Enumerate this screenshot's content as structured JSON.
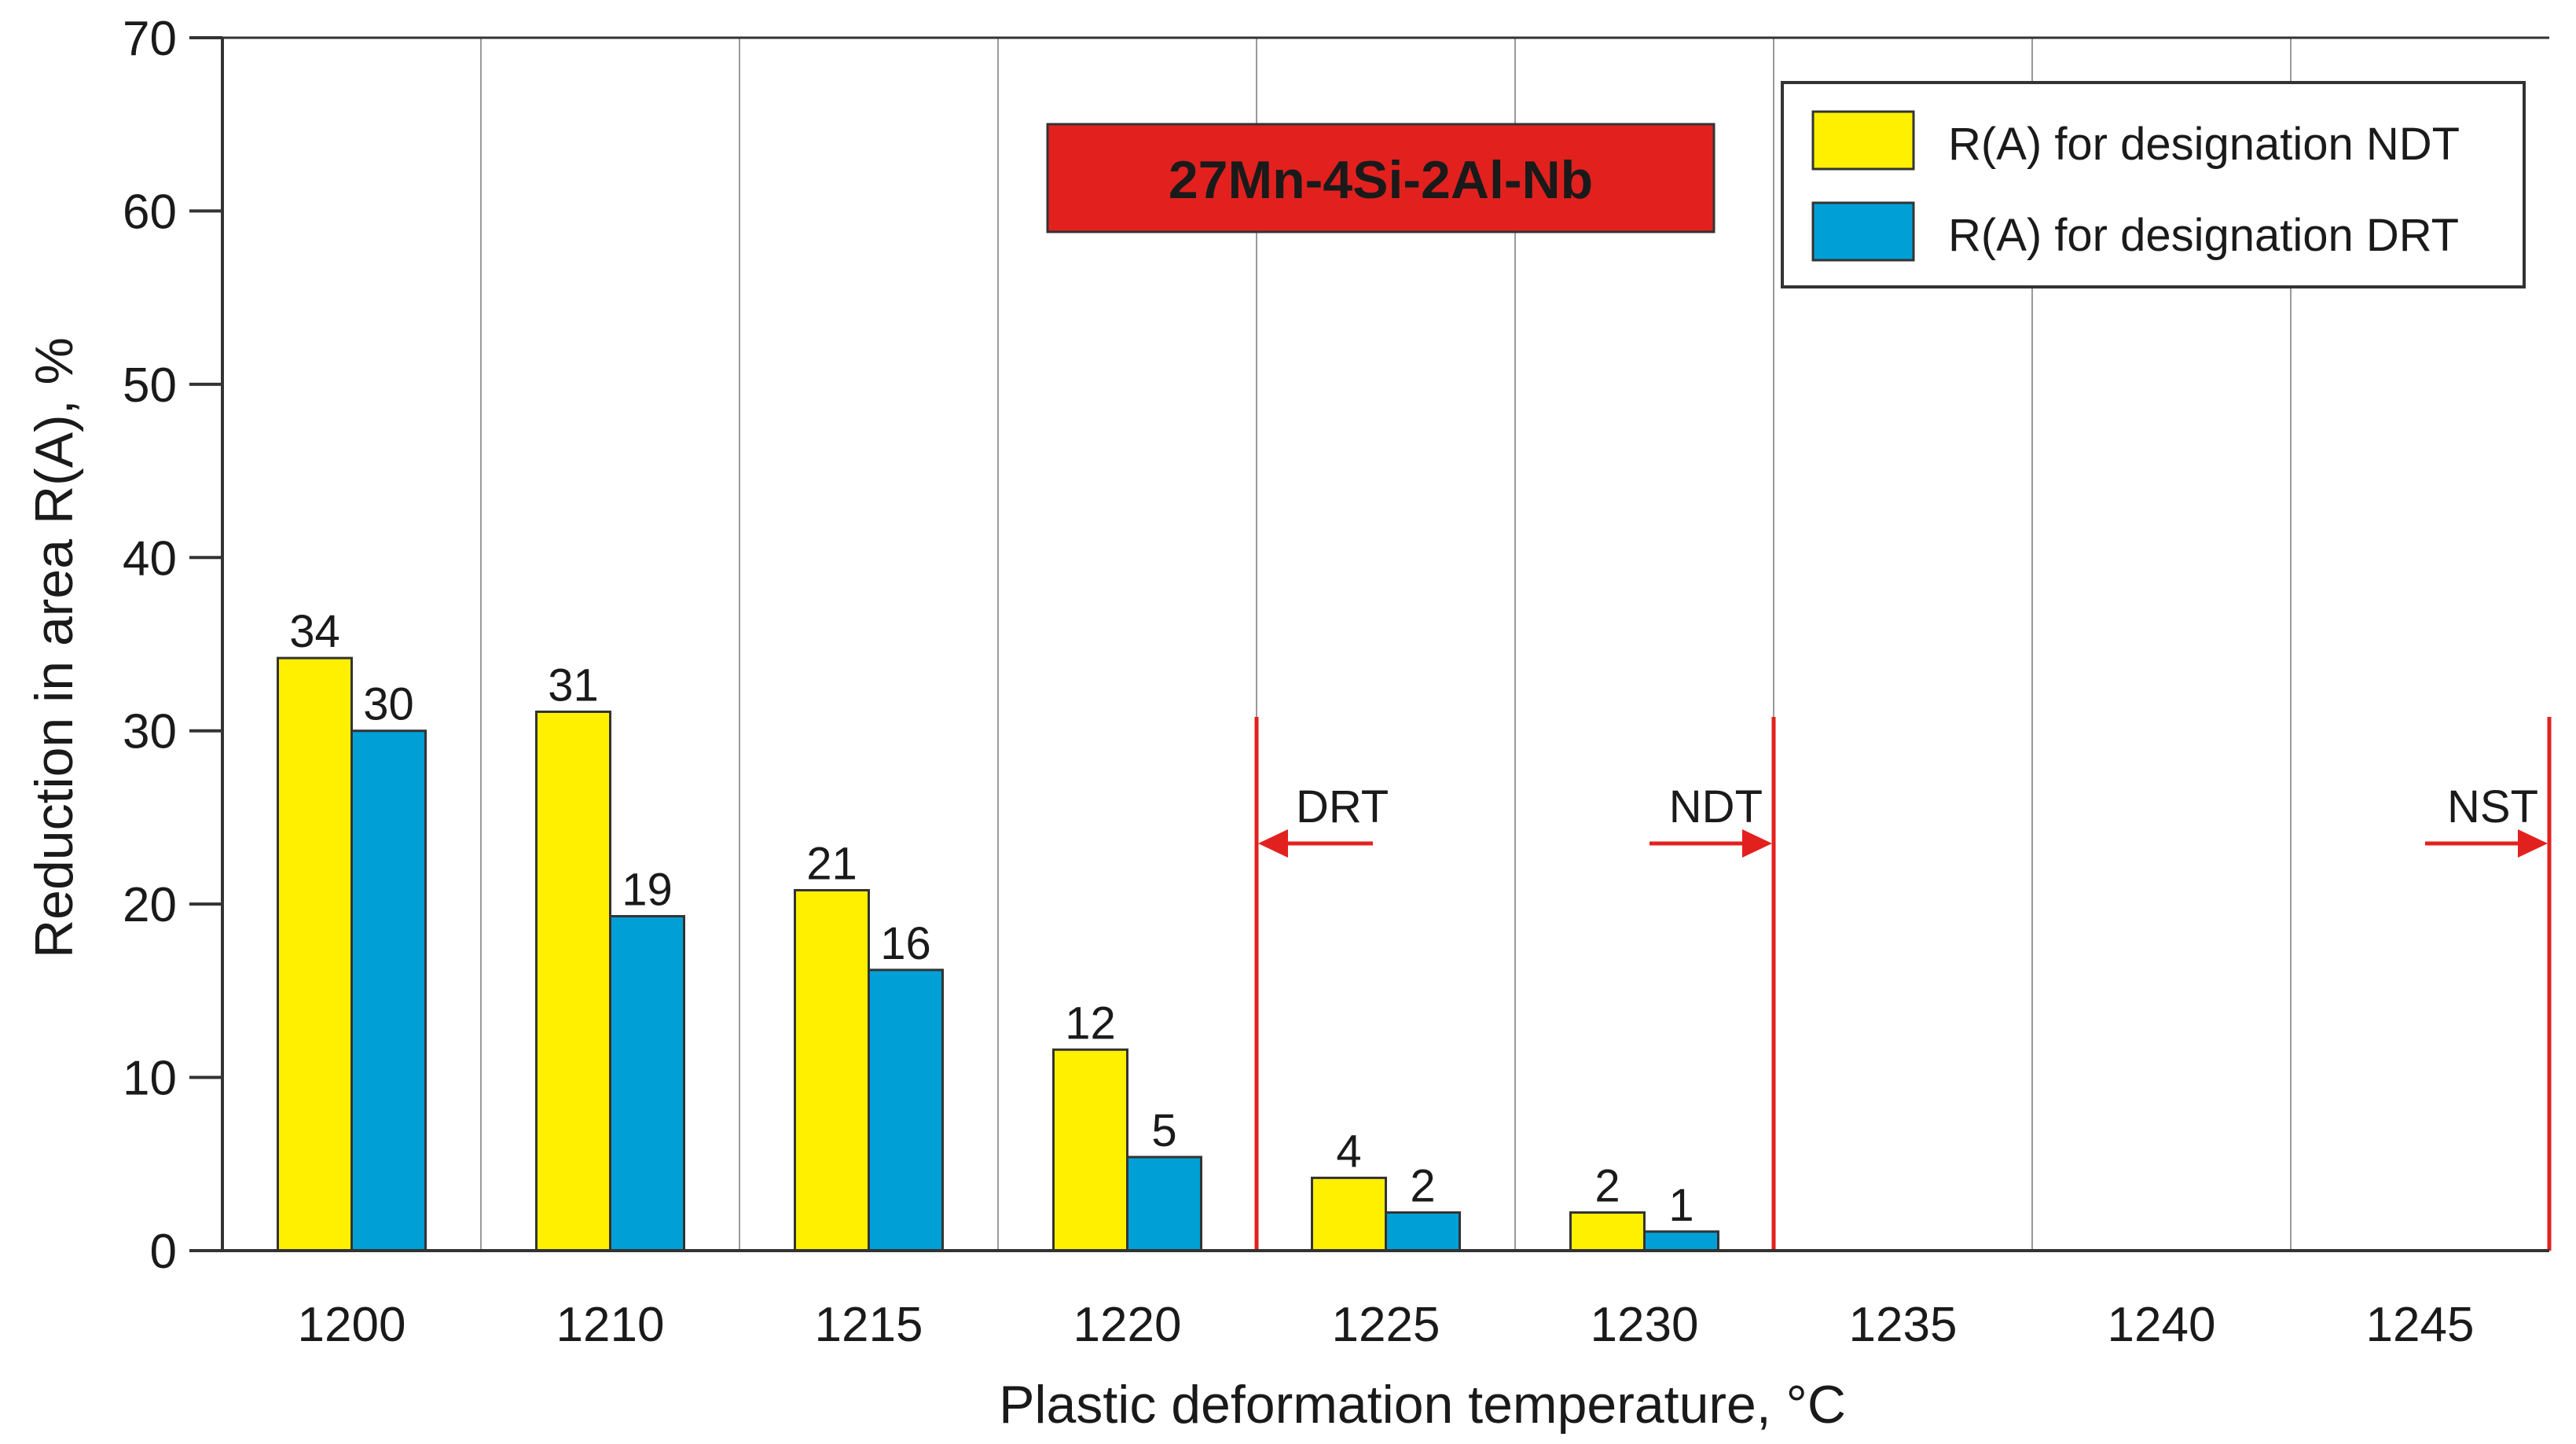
{
  "chart_data": {
    "type": "bar",
    "title": "27Mn-4Si-2Al-Nb",
    "xlabel": "Plastic deformation temperature, °C",
    "ylabel": "Reduction in area R(A), %",
    "ylim": [
      0,
      70
    ],
    "yticks": [
      "0",
      "10",
      "20",
      "30",
      "40",
      "50",
      "60",
      "70"
    ],
    "categories": [
      "1200",
      "1210",
      "1215",
      "1220",
      "1225",
      "1230",
      "1235",
      "1240",
      "1245"
    ],
    "grid": "vertical lines between categories",
    "legend_position": "top-right",
    "series": [
      {
        "name": "R(A) for designation NDT",
        "color": "#FFF000",
        "values": [
          34.2,
          31.1,
          20.8,
          11.6,
          4.2,
          2.2,
          null,
          null,
          null
        ],
        "labels": [
          "34",
          "31",
          "21",
          "12",
          "4",
          "2",
          "",
          "",
          ""
        ]
      },
      {
        "name": "R(A) for designation DRT",
        "color": "#009FD6",
        "values": [
          30.0,
          19.3,
          16.2,
          5.4,
          2.2,
          1.1,
          null,
          null,
          null
        ],
        "labels": [
          "30",
          "19",
          "16",
          "5",
          "2",
          "1",
          "",
          "",
          ""
        ]
      }
    ],
    "title_box_color": "#E2211F",
    "marker_color": "#E2211F",
    "markers": [
      {
        "label": "DRT",
        "boundary_between": [
          "1220",
          "1225"
        ],
        "arrow": "left"
      },
      {
        "label": "NDT",
        "boundary_between": [
          "1230",
          "1235"
        ],
        "arrow": "right"
      },
      {
        "label": "NST",
        "boundary_between": [
          "1245",
          "end"
        ],
        "arrow": "right"
      }
    ]
  }
}
